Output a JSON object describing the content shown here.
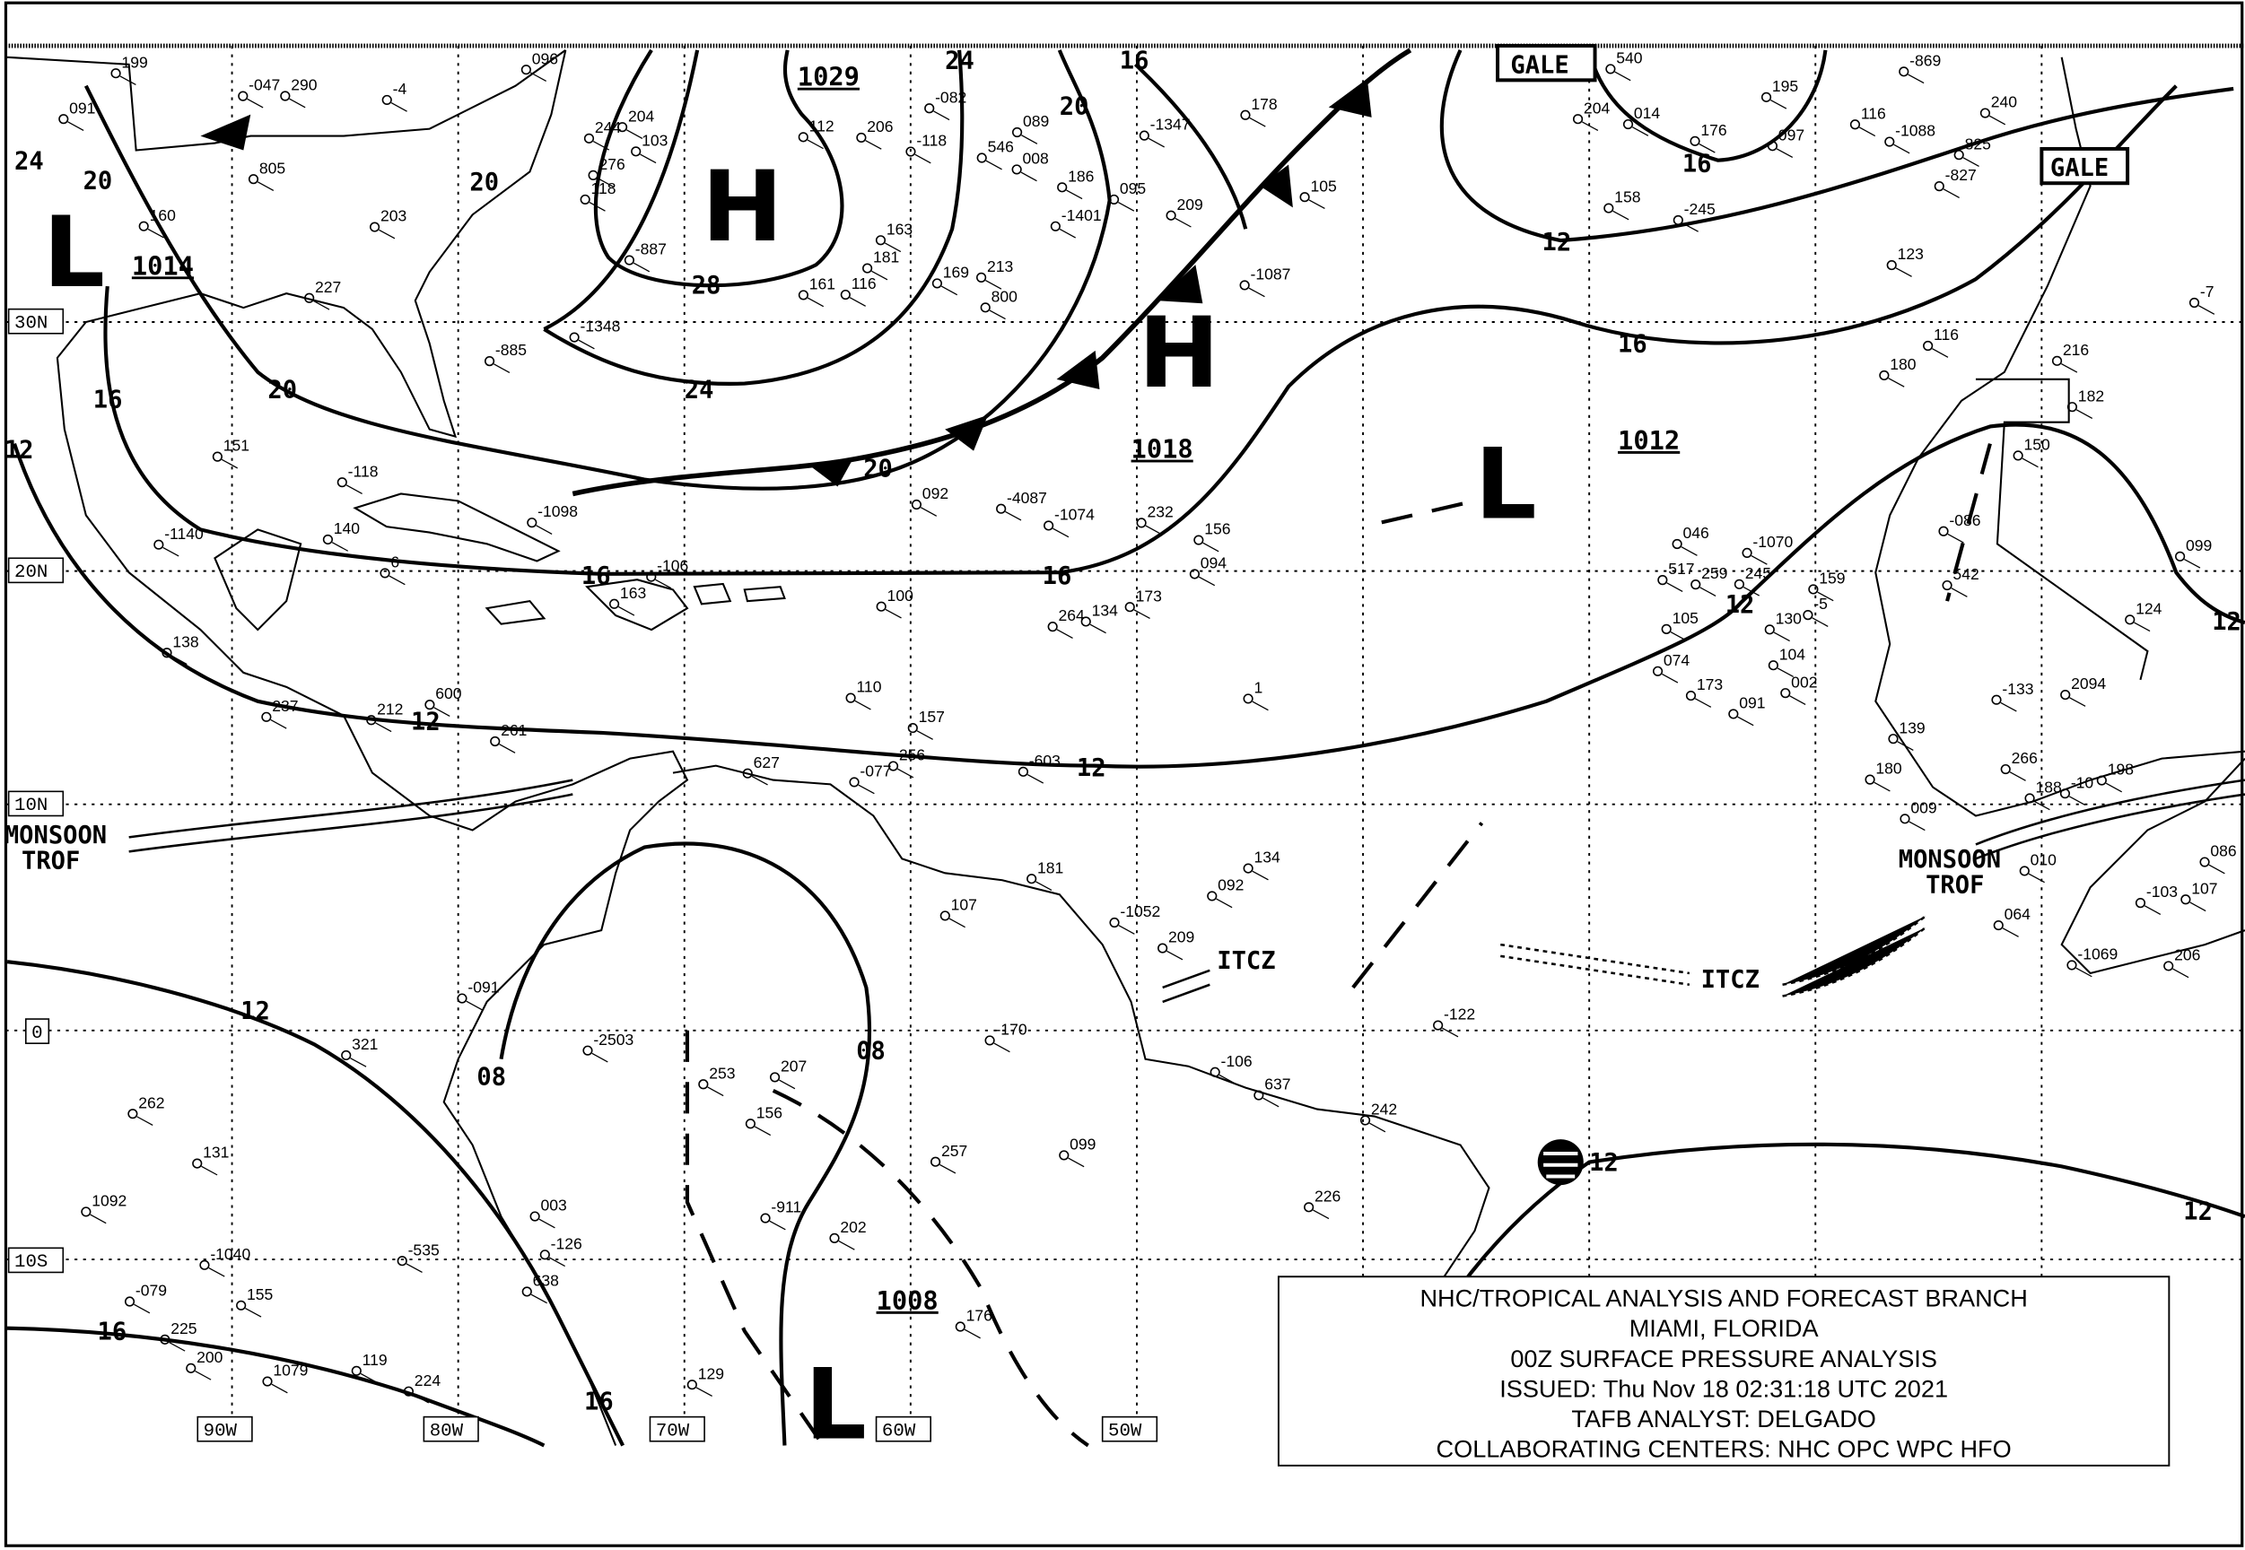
{
  "title_box": {
    "line1": "NHC/TROPICAL ANALYSIS AND FORECAST BRANCH",
    "line2": "MIAMI, FLORIDA",
    "line3": "00Z SURFACE PRESSURE ANALYSIS",
    "line4": "ISSUED: Thu Nov 18 02:31:18 UTC 2021",
    "line5": "TAFB ANALYST: DELGADO",
    "line6": "COLLABORATING CENTERS: NHC OPC WPC HFO"
  },
  "latitude_labels": [
    "30N",
    "20N",
    "10N",
    "0",
    "10S"
  ],
  "longitude_labels": [
    "90W",
    "80W",
    "70W",
    "60W",
    "50W"
  ],
  "pressure_centers": [
    {
      "type": "H",
      "value": "1029"
    },
    {
      "type": "L",
      "value": "1014"
    },
    {
      "type": "H",
      "value": "1018"
    },
    {
      "type": "L",
      "value": "1012"
    },
    {
      "type": "L",
      "value": "1008"
    }
  ],
  "isobar_labels": [
    "24",
    "20",
    "20",
    "16",
    "12",
    "28",
    "24",
    "20",
    "24",
    "20",
    "16",
    "16",
    "16",
    "16",
    "12",
    "12",
    "12",
    "12",
    "12",
    "08",
    "08",
    "12",
    "12",
    "16",
    "16",
    "12",
    "20"
  ],
  "features": {
    "gale1": "GALE",
    "gale2": "GALE",
    "itcz1": "ITCZ",
    "itcz2": "ITCZ",
    "monsoon1": "MONSOON",
    "trof1": "TROF",
    "monsoon2": "MONSOON",
    "trof2": "TROF"
  },
  "station_values": [
    "227",
    "204",
    "186",
    "158",
    "182",
    "212",
    "232",
    "245",
    "198",
    "156",
    "181",
    "224",
    "244",
    "206",
    "169",
    "195",
    "216",
    "237",
    "256",
    "173",
    "188",
    "207",
    "242",
    "262",
    "290",
    "276",
    "209",
    "240",
    "150",
    "261",
    "264",
    "259",
    "206",
    "176",
    "134",
    "131",
    "160",
    "181",
    "213",
    "204",
    "139",
    "163",
    "157",
    "159",
    "180",
    "202",
    "226",
    "225",
    "199",
    "161",
    "178",
    "176",
    "180",
    "140",
    "156",
    "046",
    "266",
    "253",
    "257",
    "155",
    "151",
    "163",
    "546",
    "540",
    "116",
    "138",
    "134",
    "130",
    "107",
    "129",
    "-122",
    "119",
    "-118",
    "116",
    "105",
    "116",
    "124",
    "110",
    "100",
    "091",
    "086",
    "003",
    "099",
    "200",
    "203",
    "-082",
    "008",
    "825",
    "123",
    "-1098",
    "-4087",
    "074",
    "010",
    "107",
    "209",
    "-079",
    "096",
    "112",
    "089",
    "-1088",
    "-086",
    "-077",
    "-603",
    "517",
    "-1069",
    "-2503",
    "-1052",
    "-535",
    "-885",
    "-887",
    "095",
    "014",
    "-133",
    "627",
    "-1074",
    "-1070",
    "-10",
    "-911",
    "092",
    "1092",
    "-4",
    "800",
    "-1087",
    "-827",
    "2094",
    "-1140",
    "173",
    "104",
    "009",
    "-091",
    "-106",
    "1079",
    "091",
    "103",
    "-118",
    "097",
    "099",
    "600",
    "094",
    "105",
    "-103",
    "-126",
    "-170",
    "321",
    "805",
    "118",
    "-1401",
    "-869",
    "-7",
    "6",
    "1",
    "-5",
    "064",
    "638",
    "637",
    "-1040",
    "-047",
    "-1348",
    "-1347",
    "-245",
    "542",
    "-106",
    "092",
    "002"
  ],
  "colors": {
    "ink": "#000000",
    "background": "#ffffff"
  }
}
